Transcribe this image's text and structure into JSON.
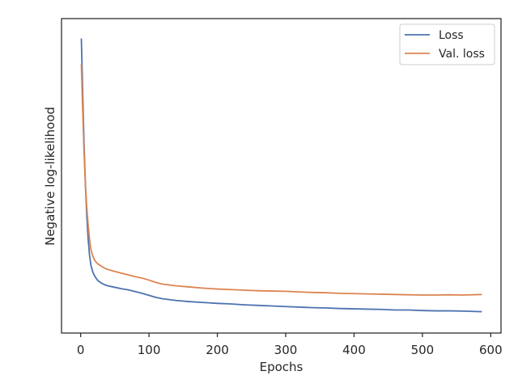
{
  "chart_data": {
    "type": "line",
    "title": "",
    "xlabel": "Epochs",
    "ylabel": "Negative log-likelihood",
    "xlim": [
      -28,
      615
    ],
    "ylim": [
      0.0,
      1.0
    ],
    "xticks": [
      0,
      100,
      200,
      300,
      400,
      500,
      600
    ],
    "xtick_labels": [
      "0",
      "100",
      "200",
      "300",
      "400",
      "500",
      "600"
    ],
    "yticks_shown": false,
    "grid": false,
    "legend_position": "top-right",
    "series": [
      {
        "name": "Loss",
        "color": "#4c72b0",
        "x": [
          1,
          3,
          5,
          7,
          9,
          11,
          13,
          15,
          18,
          21,
          25,
          30,
          35,
          40,
          50,
          60,
          70,
          80,
          90,
          100,
          110,
          120,
          140,
          160,
          180,
          200,
          220,
          240,
          260,
          280,
          300,
          320,
          340,
          360,
          380,
          400,
          420,
          440,
          460,
          480,
          500,
          520,
          540,
          560,
          587
        ],
        "y": [
          0.97,
          0.78,
          0.6,
          0.46,
          0.35,
          0.27,
          0.215,
          0.18,
          0.155,
          0.14,
          0.127,
          0.118,
          0.112,
          0.108,
          0.103,
          0.098,
          0.094,
          0.088,
          0.082,
          0.075,
          0.068,
          0.063,
          0.057,
          0.053,
          0.05,
          0.047,
          0.045,
          0.042,
          0.04,
          0.038,
          0.036,
          0.034,
          0.032,
          0.031,
          0.029,
          0.028,
          0.027,
          0.026,
          0.024,
          0.024,
          0.022,
          0.021,
          0.021,
          0.02,
          0.018
        ]
      },
      {
        "name": "Val. loss",
        "color": "#dd8452",
        "x": [
          1,
          3,
          5,
          7,
          9,
          11,
          13,
          15,
          18,
          21,
          25,
          30,
          35,
          40,
          50,
          60,
          70,
          80,
          90,
          100,
          110,
          120,
          140,
          160,
          180,
          200,
          220,
          240,
          260,
          280,
          300,
          320,
          340,
          360,
          380,
          400,
          420,
          440,
          460,
          480,
          500,
          520,
          540,
          560,
          587
        ],
        "y": [
          0.88,
          0.72,
          0.57,
          0.46,
          0.38,
          0.32,
          0.27,
          0.235,
          0.21,
          0.195,
          0.185,
          0.177,
          0.17,
          0.165,
          0.158,
          0.152,
          0.146,
          0.14,
          0.135,
          0.128,
          0.12,
          0.114,
          0.108,
          0.104,
          0.1,
          0.097,
          0.095,
          0.093,
          0.091,
          0.09,
          0.089,
          0.087,
          0.085,
          0.084,
          0.082,
          0.081,
          0.08,
          0.079,
          0.078,
          0.077,
          0.076,
          0.076,
          0.077,
          0.076,
          0.078
        ]
      }
    ]
  }
}
